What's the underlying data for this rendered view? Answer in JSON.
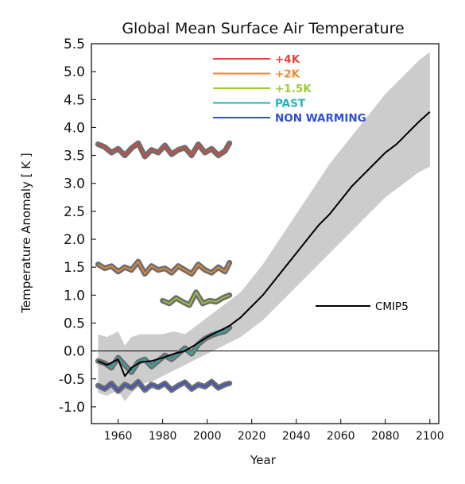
{
  "chart_data": {
    "type": "line",
    "title": "Global Mean Surface Air Temperature",
    "xlabel": "Year",
    "ylabel": "Temperature Anomaly [ K ]",
    "xlim": [
      1948,
      2104
    ],
    "ylim": [
      -1.3,
      5.5
    ],
    "xticks": [
      1960,
      1980,
      2000,
      2020,
      2040,
      2060,
      2080,
      2100
    ],
    "yticks": [
      -1.0,
      -0.5,
      0.0,
      0.5,
      1.0,
      1.5,
      2.0,
      2.5,
      3.0,
      3.5,
      4.0,
      4.5,
      5.0,
      5.5
    ],
    "ytick_labels": [
      "-1.0",
      "-0.5",
      "0.0",
      "0.5",
      "1.0",
      "1.5",
      "2.0",
      "2.5",
      "3.0",
      "3.5",
      "4.0",
      "4.5",
      "5.0",
      "5.5"
    ],
    "grid": false,
    "zero_line": true,
    "legend_position": "top-center",
    "series": [
      {
        "name": "+4K",
        "color": "#e8413c",
        "band_color": "#6e6e6e",
        "x": [
          1951,
          1954,
          1957,
          1960,
          1963,
          1966,
          1969,
          1972,
          1975,
          1978,
          1981,
          1984,
          1987,
          1990,
          1993,
          1996,
          1999,
          2002,
          2005,
          2008,
          2010
        ],
        "y": [
          3.7,
          3.65,
          3.55,
          3.62,
          3.5,
          3.63,
          3.72,
          3.48,
          3.6,
          3.55,
          3.68,
          3.52,
          3.6,
          3.64,
          3.5,
          3.7,
          3.55,
          3.62,
          3.5,
          3.58,
          3.72
        ]
      },
      {
        "name": "+2K",
        "color": "#f08a2c",
        "band_color": "#6e6e6e",
        "x": [
          1951,
          1954,
          1957,
          1960,
          1963,
          1966,
          1969,
          1972,
          1975,
          1978,
          1981,
          1984,
          1987,
          1990,
          1993,
          1996,
          1999,
          2002,
          2005,
          2008,
          2010
        ],
        "y": [
          1.55,
          1.48,
          1.52,
          1.42,
          1.5,
          1.45,
          1.6,
          1.38,
          1.52,
          1.45,
          1.48,
          1.4,
          1.52,
          1.45,
          1.38,
          1.55,
          1.45,
          1.4,
          1.5,
          1.42,
          1.58
        ]
      },
      {
        "name": "+1.5K",
        "color": "#9acd32",
        "band_color": "#6e6e6e",
        "x": [
          1980,
          1983,
          1986,
          1989,
          1992,
          1995,
          1998,
          2001,
          2004,
          2007,
          2010
        ],
        "y": [
          0.9,
          0.85,
          0.95,
          0.88,
          0.82,
          1.05,
          0.85,
          0.9,
          0.88,
          0.95,
          1.0
        ]
      },
      {
        "name": "PAST",
        "color": "#1fb5b5",
        "band_color": "#6e6e6e",
        "x": [
          1951,
          1954,
          1957,
          1960,
          1963,
          1966,
          1969,
          1972,
          1975,
          1978,
          1981,
          1984,
          1987,
          1990,
          1993,
          1996,
          1999,
          2002,
          2005,
          2008,
          2010
        ],
        "y": [
          -0.18,
          -0.22,
          -0.3,
          -0.12,
          -0.25,
          -0.38,
          -0.2,
          -0.15,
          -0.28,
          -0.18,
          -0.08,
          -0.15,
          -0.05,
          0.05,
          -0.05,
          0.12,
          0.22,
          0.28,
          0.32,
          0.35,
          0.42
        ]
      },
      {
        "name": "NON WARMING",
        "color": "#2f4fd8",
        "band_color": "#6e6e6e",
        "x": [
          1951,
          1954,
          1957,
          1960,
          1963,
          1966,
          1969,
          1972,
          1975,
          1978,
          1981,
          1984,
          1987,
          1990,
          1993,
          1996,
          1999,
          2002,
          2005,
          2008,
          2010
        ],
        "y": [
          -0.62,
          -0.68,
          -0.58,
          -0.72,
          -0.6,
          -0.66,
          -0.55,
          -0.7,
          -0.6,
          -0.65,
          -0.58,
          -0.7,
          -0.62,
          -0.56,
          -0.68,
          -0.6,
          -0.64,
          -0.55,
          -0.66,
          -0.6,
          -0.58
        ]
      },
      {
        "name": "CMIP5",
        "color": "#000000",
        "x": [
          1951,
          1955,
          1960,
          1963,
          1966,
          1970,
          1975,
          1980,
          1985,
          1990,
          1995,
          2000,
          2005,
          2010,
          2015,
          2020,
          2025,
          2030,
          2035,
          2040,
          2045,
          2050,
          2055,
          2060,
          2065,
          2070,
          2075,
          2080,
          2085,
          2090,
          2095,
          2100
        ],
        "y": [
          -0.18,
          -0.25,
          -0.15,
          -0.45,
          -0.3,
          -0.2,
          -0.18,
          -0.12,
          -0.05,
          0.0,
          0.12,
          0.25,
          0.35,
          0.45,
          0.6,
          0.8,
          1.0,
          1.25,
          1.5,
          1.75,
          2.0,
          2.25,
          2.45,
          2.7,
          2.95,
          3.15,
          3.35,
          3.55,
          3.7,
          3.9,
          4.1,
          4.28
        ],
        "band_color": "#cccccc",
        "band_low": [
          -0.75,
          -0.8,
          -0.7,
          -0.9,
          -0.75,
          -0.6,
          -0.55,
          -0.45,
          -0.35,
          -0.25,
          -0.15,
          -0.05,
          0.05,
          0.15,
          0.25,
          0.4,
          0.55,
          0.75,
          0.95,
          1.15,
          1.35,
          1.55,
          1.75,
          1.95,
          2.15,
          2.35,
          2.55,
          2.75,
          2.9,
          3.05,
          3.2,
          3.3
        ],
        "band_high": [
          0.3,
          0.25,
          0.35,
          0.1,
          0.25,
          0.3,
          0.3,
          0.3,
          0.35,
          0.3,
          0.45,
          0.6,
          0.75,
          0.9,
          1.05,
          1.3,
          1.55,
          1.85,
          2.15,
          2.45,
          2.75,
          3.05,
          3.35,
          3.6,
          3.85,
          4.1,
          4.35,
          4.6,
          4.8,
          5.0,
          5.2,
          5.35
        ]
      }
    ],
    "legend": [
      {
        "label": "+4K",
        "color": "#e8413c"
      },
      {
        "label": "+2K",
        "color": "#f08a2c"
      },
      {
        "label": "+1.5K",
        "color": "#9acd32"
      },
      {
        "label": "PAST",
        "color": "#1fb5b5"
      },
      {
        "label": "NON WARMING",
        "color": "#2f4fd8"
      }
    ],
    "annotation": {
      "label": "CMIP5",
      "color": "#000000"
    }
  }
}
